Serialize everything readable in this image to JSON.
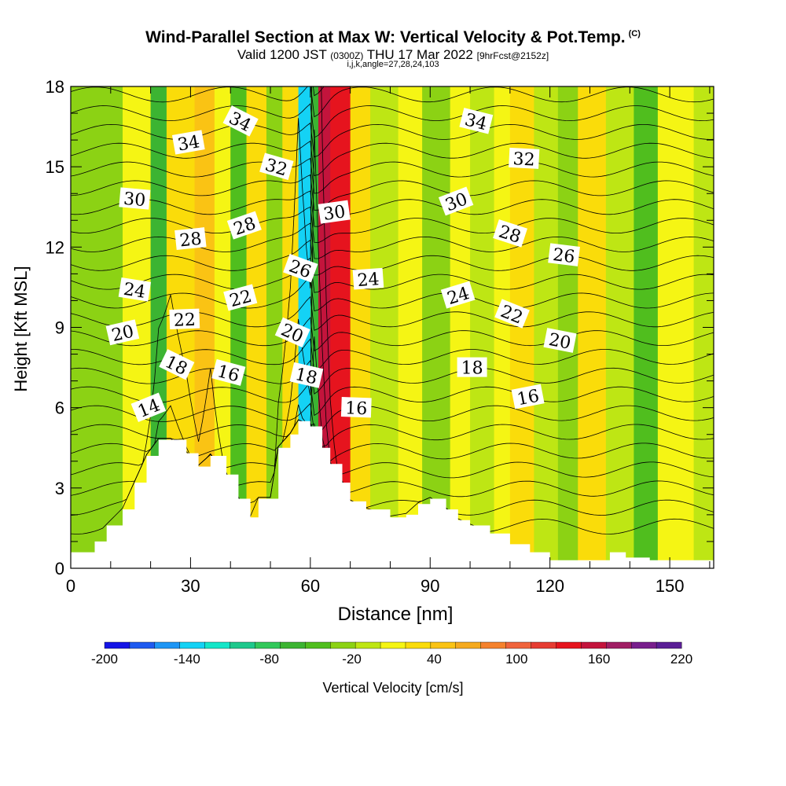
{
  "header": {
    "title": "Wind-Parallel Section at Max W: Vertical Velocity & Pot.Temp.",
    "copyright": "(C)",
    "valid_main": "Valid 1200 JST",
    "valid_utc": "(0300Z)",
    "valid_date": "THU 17 Mar 2022",
    "forecast": "[9hrFcst@2152z]",
    "indices": "i,j,k,angle=27,28,24,103"
  },
  "chart_data": {
    "type": "heatmap",
    "title": "Wind-Parallel Section at Max W: Vertical Velocity & Pot.Temp.",
    "xlabel": "Distance [nm]",
    "ylabel": "Height [Kft MSL]",
    "xlim": [
      0,
      161
    ],
    "ylim": [
      0,
      18
    ],
    "xticks": [
      0,
      30,
      60,
      90,
      120,
      150
    ],
    "yticks": [
      0,
      3,
      6,
      9,
      12,
      15,
      18
    ],
    "colorbar": {
      "label": "Vertical Velocity [cm/s]",
      "tick_labels": [
        "-200",
        "-140",
        "-80",
        "-20",
        "40",
        "100",
        "160",
        "220"
      ],
      "colors": [
        "#1414e6",
        "#1e5af0",
        "#1e96f5",
        "#14d2f5",
        "#14e6c8",
        "#1ec88c",
        "#32c85a",
        "#3cb432",
        "#50be1e",
        "#8cd214",
        "#bee614",
        "#f5f514",
        "#fadc0a",
        "#fac314",
        "#f5aa1e",
        "#f5822d",
        "#f0643c",
        "#e63c32",
        "#e6141e",
        "#c3143c",
        "#a01e64",
        "#781e8c",
        "#5a1e96"
      ]
    },
    "field_bands": [
      {
        "x": 0,
        "w": -20
      },
      {
        "x": 6,
        "w": -35
      },
      {
        "x": 13,
        "w": 10
      },
      {
        "x": 20,
        "w": -60
      },
      {
        "x": 24,
        "w": 25
      },
      {
        "x": 31,
        "w": 40
      },
      {
        "x": 36,
        "w": 10
      },
      {
        "x": 40,
        "w": -45
      },
      {
        "x": 44,
        "w": 30
      },
      {
        "x": 49,
        "w": -30
      },
      {
        "x": 53,
        "w": 20
      },
      {
        "x": 57,
        "w": -130
      },
      {
        "x": 60,
        "w": -60
      },
      {
        "x": 62,
        "w": 160
      },
      {
        "x": 65,
        "w": 130
      },
      {
        "x": 70,
        "w": 30
      },
      {
        "x": 75,
        "w": -10
      },
      {
        "x": 82,
        "w": 10
      },
      {
        "x": 88,
        "w": -20
      },
      {
        "x": 95,
        "w": 15
      },
      {
        "x": 100,
        "w": -10
      },
      {
        "x": 106,
        "w": 5
      },
      {
        "x": 110,
        "w": 35
      },
      {
        "x": 116,
        "w": -5
      },
      {
        "x": 122,
        "w": -25
      },
      {
        "x": 127,
        "w": 20
      },
      {
        "x": 134,
        "w": -10
      },
      {
        "x": 141,
        "w": -40
      },
      {
        "x": 147,
        "w": 10
      },
      {
        "x": 156,
        "w": -15
      },
      {
        "x": 161,
        "w": 0
      }
    ],
    "terrain": {
      "x": [
        0,
        3,
        6,
        9,
        13,
        16,
        19,
        22,
        25,
        29,
        32,
        35,
        39,
        42,
        45,
        47,
        50,
        52,
        55,
        57,
        60,
        63,
        65,
        68,
        70,
        74,
        80,
        84,
        87,
        90,
        94,
        97,
        100,
        105,
        110,
        115,
        120,
        130,
        135,
        139,
        145,
        161
      ],
      "height": [
        0.6,
        0.6,
        1.0,
        1.6,
        2.2,
        3.2,
        4.2,
        4.8,
        4.8,
        4.3,
        3.8,
        4.2,
        3.5,
        2.6,
        1.9,
        2.6,
        2.6,
        4.5,
        5.0,
        5.5,
        5.3,
        4.5,
        3.9,
        3.2,
        2.5,
        2.2,
        1.9,
        2.0,
        2.4,
        2.6,
        2.2,
        1.8,
        1.6,
        1.3,
        0.9,
        0.6,
        0.3,
        0.3,
        0.6,
        0.4,
        0.3,
        0.3
      ]
    },
    "theta_contour_labels": [
      {
        "value": "14",
        "x": 19.5,
        "y": 6.0
      },
      {
        "value": "16",
        "x": 39.5,
        "y": 7.3
      },
      {
        "value": "16",
        "x": 71.5,
        "y": 6.0
      },
      {
        "value": "16",
        "x": 114.5,
        "y": 6.4
      },
      {
        "value": "18",
        "x": 26.5,
        "y": 7.6
      },
      {
        "value": "18",
        "x": 59.0,
        "y": 7.2
      },
      {
        "value": "18",
        "x": 100.5,
        "y": 7.5
      },
      {
        "value": "20",
        "x": 13.0,
        "y": 8.8
      },
      {
        "value": "20",
        "x": 55.5,
        "y": 8.8
      },
      {
        "value": "20",
        "x": 122.5,
        "y": 8.5
      },
      {
        "value": "22",
        "x": 28.5,
        "y": 9.3
      },
      {
        "value": "22",
        "x": 42.5,
        "y": 10.1
      },
      {
        "value": "22",
        "x": 110.5,
        "y": 9.5
      },
      {
        "value": "24",
        "x": 16.0,
        "y": 10.4
      },
      {
        "value": "24",
        "x": 74.5,
        "y": 10.8
      },
      {
        "value": "24",
        "x": 97.0,
        "y": 10.2
      },
      {
        "value": "26",
        "x": 57.5,
        "y": 11.2
      },
      {
        "value": "26",
        "x": 123.5,
        "y": 11.7
      },
      {
        "value": "28",
        "x": 30.0,
        "y": 12.3
      },
      {
        "value": "28",
        "x": 43.5,
        "y": 12.8
      },
      {
        "value": "28",
        "x": 110.0,
        "y": 12.5
      },
      {
        "value": "30",
        "x": 16.0,
        "y": 13.8
      },
      {
        "value": "30",
        "x": 66.0,
        "y": 13.3
      },
      {
        "value": "30",
        "x": 96.5,
        "y": 13.7
      },
      {
        "value": "32",
        "x": 51.5,
        "y": 15.0
      },
      {
        "value": "32",
        "x": 113.5,
        "y": 15.3
      },
      {
        "value": "34",
        "x": 29.5,
        "y": 15.9
      },
      {
        "value": "34",
        "x": 42.5,
        "y": 16.7
      },
      {
        "value": "34",
        "x": 101.5,
        "y": 16.7
      }
    ]
  }
}
